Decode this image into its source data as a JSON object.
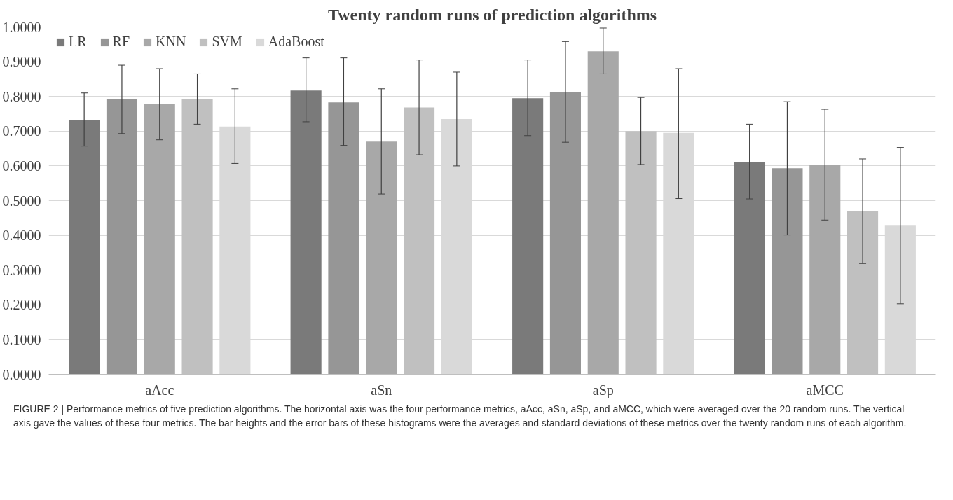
{
  "chart_data": {
    "type": "bar",
    "title": "Twenty random runs of prediction algorithms",
    "categories": [
      "aAcc",
      "aSn",
      "aSp",
      "aMCC"
    ],
    "series": [
      {
        "name": "LR",
        "color": "#7a7a7a",
        "values": [
          0.733,
          0.817,
          0.795,
          0.612
        ],
        "errors": [
          [
            0.657,
            0.81
          ],
          [
            0.727,
            0.911
          ],
          [
            0.687,
            0.905
          ],
          [
            0.505,
            0.72
          ]
        ]
      },
      {
        "name": "RF",
        "color": "#969696",
        "values": [
          0.792,
          0.783,
          0.813,
          0.593
        ],
        "errors": [
          [
            0.693,
            0.89
          ],
          [
            0.659,
            0.911
          ],
          [
            0.668,
            0.958
          ],
          [
            0.401,
            0.785
          ]
        ]
      },
      {
        "name": "KNN",
        "color": "#a8a8a8",
        "values": [
          0.777,
          0.67,
          0.93,
          0.602
        ],
        "errors": [
          [
            0.675,
            0.88
          ],
          [
            0.519,
            0.822
          ],
          [
            0.865,
            0.997
          ],
          [
            0.444,
            0.763
          ]
        ]
      },
      {
        "name": "SVM",
        "color": "#c0c0c0",
        "values": [
          0.792,
          0.768,
          0.7,
          0.47
        ],
        "errors": [
          [
            0.72,
            0.865
          ],
          [
            0.632,
            0.905
          ],
          [
            0.604,
            0.797
          ],
          [
            0.319,
            0.62
          ]
        ]
      },
      {
        "name": "AdaBoost",
        "color": "#d9d9d9",
        "values": [
          0.713,
          0.735,
          0.695,
          0.428
        ],
        "errors": [
          [
            0.607,
            0.822
          ],
          [
            0.6,
            0.87
          ],
          [
            0.506,
            0.88
          ],
          [
            0.203,
            0.653
          ]
        ]
      }
    ],
    "ylim": [
      0,
      1
    ],
    "yticks": [
      {
        "value": 0,
        "label": "0.0000"
      },
      {
        "value": 0.1,
        "label": "0.1000"
      },
      {
        "value": 0.2,
        "label": "0.2000"
      },
      {
        "value": 0.3,
        "label": "0.3000"
      },
      {
        "value": 0.4,
        "label": "0.4000"
      },
      {
        "value": 0.5,
        "label": "0.5000"
      },
      {
        "value": 0.6,
        "label": "0.6000"
      },
      {
        "value": 0.7,
        "label": "0.7000"
      },
      {
        "value": 0.8,
        "label": "0.8000"
      },
      {
        "value": 0.9,
        "label": "0.9000"
      },
      {
        "value": 1,
        "label": "1.0000"
      }
    ],
    "grid": "y",
    "legend": "top left",
    "annotations": [
      "FIGURE 2 | Performance metrics of five prediction algorithms. The horizontal axis was the four performance metrics, aAcc, aSn, aSp, and aMCC, which were averaged over the 20 random runs. The vertical axis gave the values of these four metrics. The bar heights and the error bars of these histograms were the averages and standard deviations of these metrics over the twenty random runs of each algorithm."
    ]
  }
}
